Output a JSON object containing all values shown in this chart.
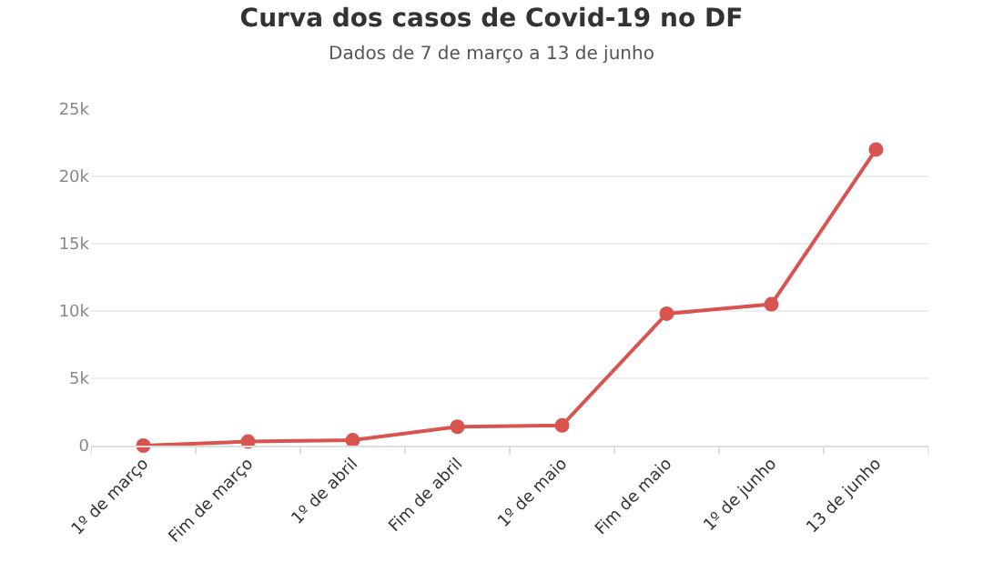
{
  "chart_data": {
    "type": "line",
    "title": "Curva dos casos de Covid-19 no DF",
    "subtitle": "Dados de 7 de março a 13 de junho",
    "categories": [
      "1º de março",
      "Fim de março",
      "1º de abril",
      "Fim de abril",
      "1º de maio",
      "Fim de maio",
      "1º de junho",
      "13 de junho"
    ],
    "series": [
      {
        "color": "#d9534f",
        "values": [
          0,
          300,
          400,
          1400,
          1500,
          9800,
          10500,
          22000
        ]
      }
    ],
    "ylim": [
      0,
      25000
    ],
    "yticks": [
      0,
      {
        "value": 5000,
        "label": "5k"
      },
      {
        "value": 10000,
        "label": "10k"
      },
      {
        "value": 15000,
        "label": "15k"
      },
      {
        "value": 20000,
        "label": "20k"
      },
      {
        "value": 25000,
        "label": "25k"
      }
    ],
    "grid": "y",
    "marker": "circle",
    "line_style": "solid"
  }
}
